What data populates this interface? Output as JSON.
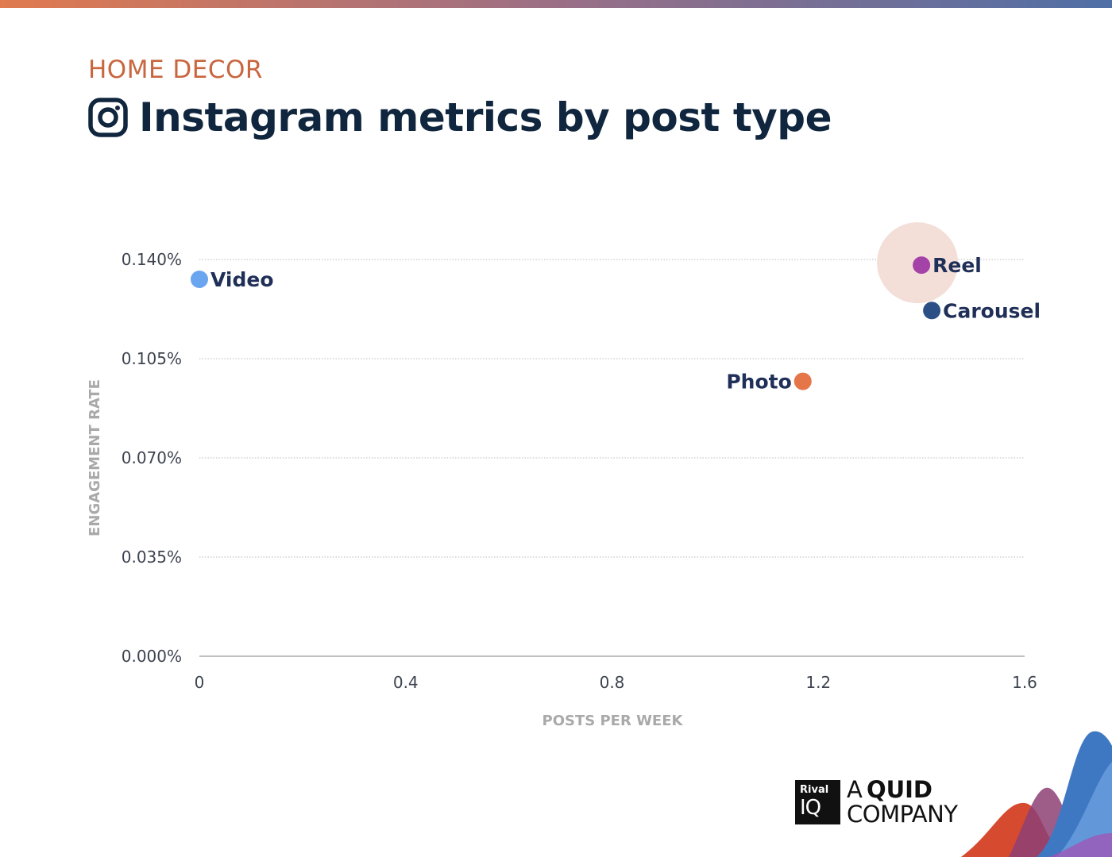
{
  "header": {
    "category": "HOME DECOR",
    "title": "Instagram metrics by post type"
  },
  "logo": {
    "box_top": "Rival",
    "box_bottom": "IQ",
    "line_a": "A",
    "line_b": "QUID",
    "line_c": "COMPANY"
  },
  "chart_data": {
    "type": "scatter",
    "xlabel": "POSTS PER WEEK",
    "ylabel": "ENGAGEMENT RATE",
    "xlim": [
      0,
      1.6
    ],
    "ylim": [
      0,
      0.14
    ],
    "xticks": [
      0,
      0.4,
      0.8,
      1.2,
      1.6
    ],
    "xtick_labels": [
      "0",
      "0.4",
      "0.8",
      "1.2",
      "1.6"
    ],
    "yticks": [
      0,
      0.035,
      0.07,
      0.105,
      0.14
    ],
    "ytick_labels": [
      "0.000%",
      "0.035%",
      "0.070%",
      "0.105%",
      "0.140%"
    ],
    "grid": "horizontal dotted",
    "highlight": "Reel",
    "points": [
      {
        "name": "Video",
        "x": 0.0,
        "y": 0.133,
        "color": "#6aa5ef",
        "label_side": "right"
      },
      {
        "name": "Reel",
        "x": 1.4,
        "y": 0.138,
        "color": "#a442a8",
        "label_side": "right"
      },
      {
        "name": "Carousel",
        "x": 1.42,
        "y": 0.122,
        "color": "#2c4f86",
        "label_side": "right"
      },
      {
        "name": "Photo",
        "x": 1.17,
        "y": 0.097,
        "color": "#e5764a",
        "label_side": "left"
      }
    ],
    "highlight_color": "#f3dfd8",
    "axis_color": "#9a9a9a",
    "label_color": "#1f2f57"
  }
}
